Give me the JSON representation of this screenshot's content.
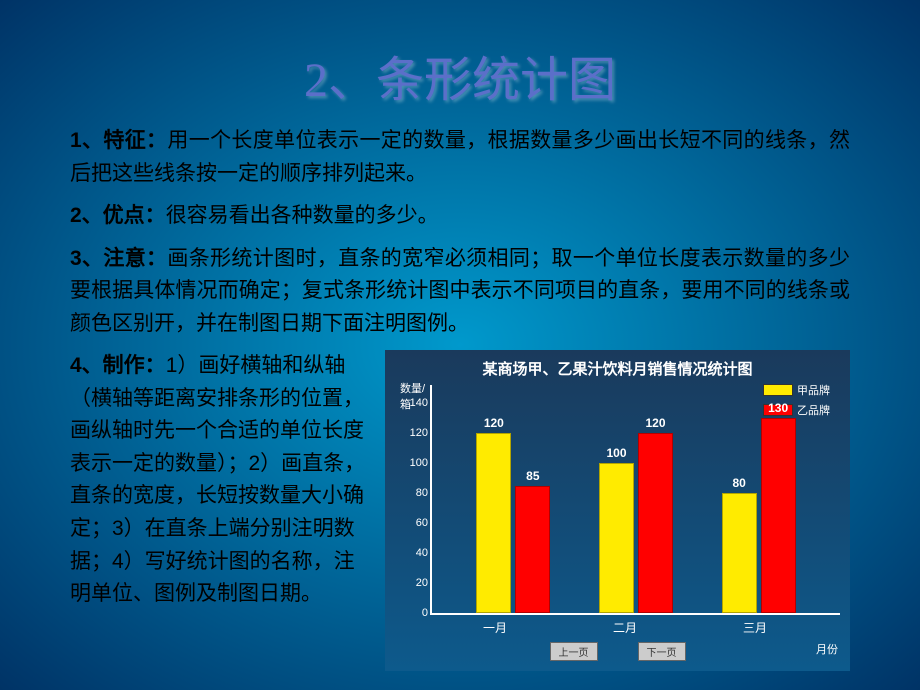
{
  "slide": {
    "title": "2、条形统计图",
    "para1_lead": "1、特征：",
    "para1_body": "用一个长度单位表示一定的数量，根据数量多少画出长短不同的线条，然后把这些线条按一定的顺序排列起来。",
    "para2_lead": "2、优点：",
    "para2_body": "很容易看出各种数量的多少。",
    "para3_lead": "3、注意：",
    "para3_body": "画条形统计图时，直条的宽窄必须相同；取一个单位长度表示数量的多少要根据具体情况而确定；复式条形统计图中表示不同项目的直条，要用不同的线条或颜色区别开，并在制图日期下面注明图例。",
    "para4_lead": "4、制作：",
    "para4_body": "1）画好横轴和纵轴（横轴等距离安排条形的位置，画纵轴时先一个合适的单位长度表示一定的数量）；2）画直条，直条的宽度，长短按数量大小确定；3）在直条上端分别注明数据；4）写好统计图的名称，注明单位、图例及制图日期。"
  },
  "chart": {
    "title": "某商场甲、乙果汁饮料月销售情况统计图",
    "y_axis_label": "数量/箱",
    "x_axis_label": "月份",
    "y_max": 140,
    "y_step": 20,
    "y_ticks": [
      0,
      20,
      40,
      60,
      80,
      100,
      120,
      140
    ],
    "categories": [
      "一月",
      "二月",
      "三月"
    ],
    "series": [
      {
        "name": "甲品牌",
        "color": "#ffeb00",
        "values": [
          120,
          100,
          80
        ]
      },
      {
        "name": "乙品牌",
        "color": "#ff0000",
        "values": [
          85,
          120,
          130
        ]
      }
    ],
    "background": "#0d5a8c",
    "axis_color": "#ffffff",
    "text_color": "#ffffff",
    "btn_prev": "上一页",
    "btn_next": "下一页"
  }
}
